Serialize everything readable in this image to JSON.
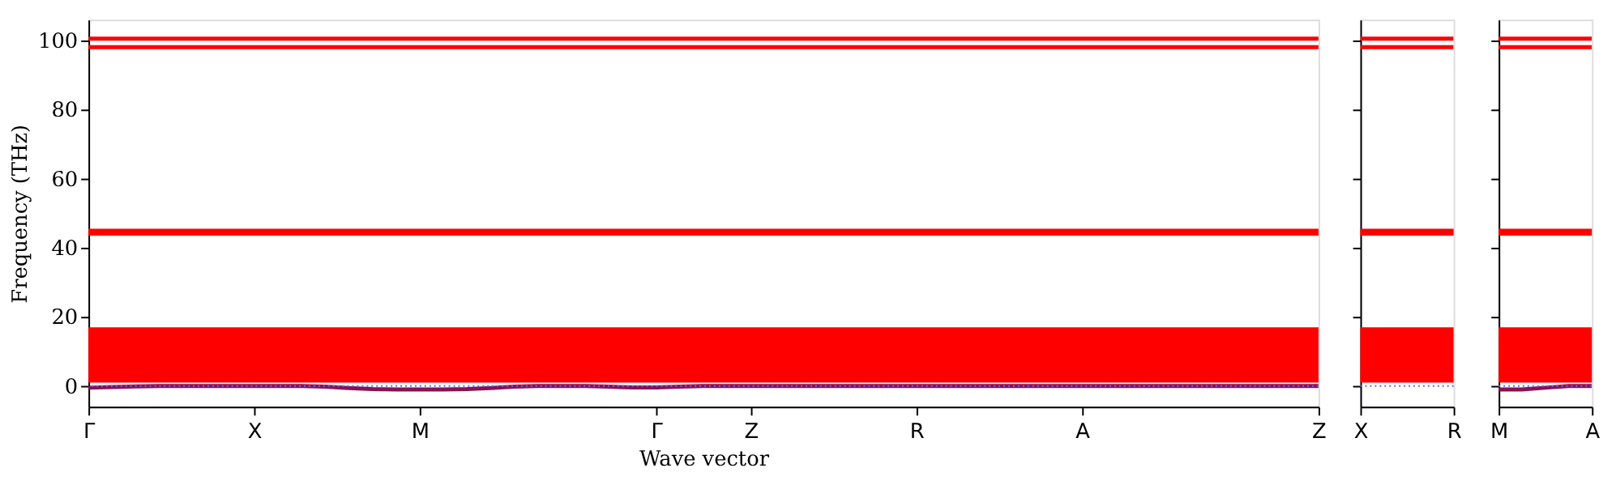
{
  "chart_data": [
    {
      "type": "line",
      "xlabel": "Wave vector",
      "ylabel": "Frequency (THz)",
      "ylim": [
        -6,
        106
      ],
      "yticks": [
        0,
        20,
        40,
        60,
        80,
        100
      ],
      "categories": [
        "Γ",
        null,
        null,
        null,
        null,
        null,
        null,
        "X",
        null,
        null,
        null,
        null,
        null,
        null,
        "M",
        null,
        null,
        null,
        null,
        null,
        null,
        null,
        null,
        null,
        "Γ",
        null,
        null,
        null,
        "Z",
        null,
        null,
        null,
        null,
        null,
        null,
        "R",
        null,
        null,
        null,
        null,
        null,
        null,
        "A",
        null,
        null,
        null,
        null,
        null,
        null,
        null,
        null,
        null,
        "Z"
      ],
      "grid": false,
      "line_style": "solid",
      "marker": "none",
      "ref_lines": [
        {
          "axis": "y",
          "value": 0,
          "color": "#6666ff",
          "line_style": "dotted"
        }
      ],
      "bands": [
        {
          "axis": "y",
          "from": 1,
          "to": 17,
          "color": "#ff0000"
        },
        {
          "axis": "y",
          "from": 43.5,
          "to": 45.5,
          "color": "#ff0000"
        }
      ],
      "series": [
        {
          "color": "#ff0000",
          "values": [
            100.5,
            100.5,
            100.5,
            100.5,
            100.5,
            100.5,
            100.5,
            100.5,
            100.5,
            100.5,
            100.5,
            100.5,
            100.5,
            100.5,
            100.5,
            100.5,
            100.5,
            100.5,
            100.5,
            100.5,
            100.5,
            100.5,
            100.5,
            100.5,
            100.5,
            100.5,
            100.5,
            100.5,
            100.5,
            100.5,
            100.5,
            100.5,
            100.5,
            100.5,
            100.5,
            100.5,
            100.5,
            100.5,
            100.5,
            100.5,
            100.5,
            100.5,
            100.5,
            100.5,
            100.5,
            100.5,
            100.5,
            100.5,
            100.5,
            100.5,
            100.5,
            100.5,
            100.5
          ]
        },
        {
          "color": "#ff0000",
          "values": [
            98,
            98,
            98,
            98,
            98,
            98,
            98,
            98,
            98,
            98,
            98,
            98,
            98,
            98,
            98,
            98,
            98,
            98,
            98,
            98,
            98,
            98,
            98,
            98,
            98,
            98,
            98,
            98,
            98,
            98,
            98,
            98,
            98,
            98,
            98,
            98,
            98,
            98,
            98,
            98,
            98,
            98,
            98,
            98,
            98,
            98,
            98,
            98,
            98,
            98,
            98,
            98,
            98
          ]
        },
        {
          "color": "#8b1050",
          "values": [
            -0.5,
            -0.3,
            -0.1,
            0,
            0,
            0,
            0,
            0,
            0,
            0,
            -0.2,
            -0.6,
            -0.9,
            -1,
            -1,
            -1,
            -0.9,
            -0.6,
            -0.2,
            0,
            0,
            0,
            -0.2,
            -0.4,
            -0.4,
            -0.2,
            0,
            0,
            0,
            0,
            0,
            0,
            0,
            0,
            0,
            0,
            0,
            0,
            0,
            0,
            0,
            0,
            0,
            0,
            0,
            0,
            0,
            0,
            0,
            0,
            0,
            0,
            0
          ]
        }
      ]
    },
    {
      "type": "line",
      "ylim": [
        -6,
        106
      ],
      "yticks": [
        0,
        20,
        40,
        60,
        80,
        100
      ],
      "tick_labels": "x",
      "categories": [
        "X",
        null,
        null,
        null,
        "R"
      ],
      "grid": false,
      "line_style": "solid",
      "marker": "none",
      "ref_lines": [
        {
          "axis": "y",
          "value": 0,
          "color": "#6666ff",
          "line_style": "dotted"
        }
      ],
      "bands": [
        {
          "axis": "y",
          "from": 1,
          "to": 17,
          "color": "#ff0000"
        },
        {
          "axis": "y",
          "from": 43.5,
          "to": 45.5,
          "color": "#ff0000"
        }
      ],
      "series": [
        {
          "color": "#ff0000",
          "values": [
            100.5,
            100.5,
            100.5,
            100.5,
            100.5
          ]
        },
        {
          "color": "#ff0000",
          "values": [
            98,
            98,
            98,
            98,
            98
          ]
        }
      ]
    },
    {
      "type": "line",
      "ylim": [
        -6,
        106
      ],
      "yticks": [
        0,
        20,
        40,
        60,
        80,
        100
      ],
      "tick_labels": "x",
      "categories": [
        "M",
        null,
        null,
        null,
        "A"
      ],
      "grid": false,
      "line_style": "solid",
      "marker": "none",
      "ref_lines": [
        {
          "axis": "y",
          "value": 0,
          "color": "#6666ff",
          "line_style": "dotted"
        }
      ],
      "bands": [
        {
          "axis": "y",
          "from": 1,
          "to": 17,
          "color": "#ff0000"
        },
        {
          "axis": "y",
          "from": 43.5,
          "to": 45.5,
          "color": "#ff0000"
        }
      ],
      "series": [
        {
          "color": "#ff0000",
          "values": [
            100.5,
            100.5,
            100.5,
            100.5,
            100.5
          ]
        },
        {
          "color": "#ff0000",
          "values": [
            98,
            98,
            98,
            98,
            98
          ]
        },
        {
          "color": "#8b1050",
          "values": [
            -1,
            -1,
            -0.5,
            0,
            0
          ]
        }
      ]
    }
  ]
}
